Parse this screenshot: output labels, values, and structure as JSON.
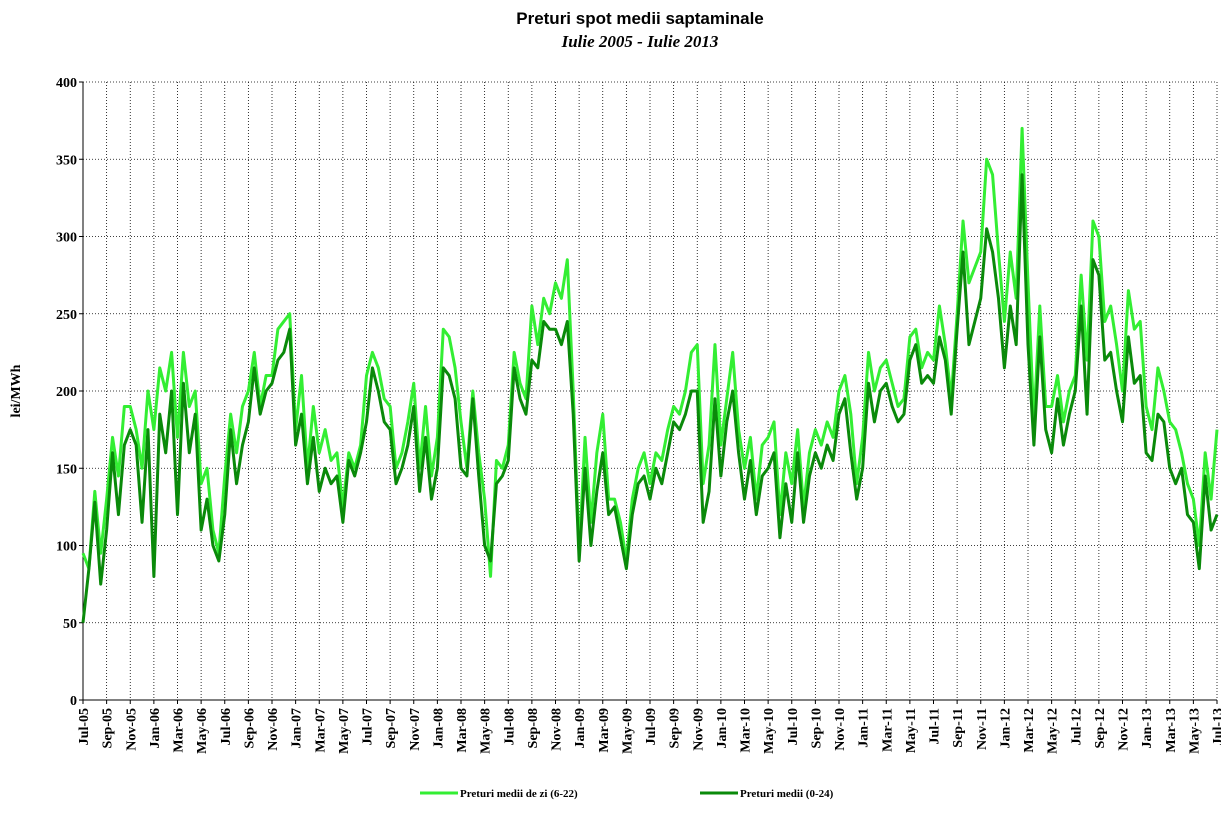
{
  "chart_data": {
    "type": "line",
    "title": "Preturi spot medii saptaminale",
    "subtitle": "Iulie 2005 - Iulie 2013",
    "y_label": "lei/MWh",
    "ylim": [
      0,
      400
    ],
    "yticks": [
      0,
      50,
      100,
      150,
      200,
      250,
      300,
      350,
      400
    ],
    "grid": true,
    "categories": [
      "Jul-05",
      null,
      null,
      null,
      "Sep-05",
      null,
      null,
      null,
      "Nov-05",
      null,
      null,
      null,
      "Jan-06",
      null,
      null,
      null,
      "Mar-06",
      null,
      null,
      null,
      "May-06",
      null,
      null,
      null,
      "Jul-06",
      null,
      null,
      null,
      "Sep-06",
      null,
      null,
      null,
      "Nov-06",
      null,
      null,
      null,
      "Jan-07",
      null,
      null,
      null,
      "Mar-07",
      null,
      null,
      null,
      "May-07",
      null,
      null,
      null,
      "Jul-07",
      null,
      null,
      null,
      "Sep-07",
      null,
      null,
      null,
      "Nov-07",
      null,
      null,
      null,
      "Jan-08",
      null,
      null,
      null,
      "Mar-08",
      null,
      null,
      null,
      "May-08",
      null,
      null,
      null,
      "Jul-08",
      null,
      null,
      null,
      "Sep-08",
      null,
      null,
      null,
      "Nov-08",
      null,
      null,
      null,
      "Jan-09",
      null,
      null,
      null,
      "Mar-09",
      null,
      null,
      null,
      "May-09",
      null,
      null,
      null,
      "Jul-09",
      null,
      null,
      null,
      "Sep-09",
      null,
      null,
      null,
      "Nov-09",
      null,
      null,
      null,
      "Jan-10",
      null,
      null,
      null,
      "Mar-10",
      null,
      null,
      null,
      "May-10",
      null,
      null,
      null,
      "Jul-10",
      null,
      null,
      null,
      "Sep-10",
      null,
      null,
      null,
      "Nov-10",
      null,
      null,
      null,
      "Jan-11",
      null,
      null,
      null,
      "Mar-11",
      null,
      null,
      null,
      "May-11",
      null,
      null,
      null,
      "Jul-11",
      null,
      null,
      null,
      "Sep-11",
      null,
      null,
      null,
      "Nov-11",
      null,
      null,
      null,
      "Jan-12",
      null,
      null,
      null,
      "Mar-12",
      null,
      null,
      null,
      "May-12",
      null,
      null,
      null,
      "Jul-12",
      null,
      null,
      null,
      "Sep-12",
      null,
      null,
      null,
      "Nov-12",
      null,
      null,
      null,
      "Jan-13",
      null,
      null,
      null,
      "Mar-13",
      null,
      null,
      null,
      "May-13",
      null,
      null,
      null,
      "Jul-13"
    ],
    "series": [
      {
        "name": "Preturi medii de zi (6-22)",
        "color": "#33ee33",
        "values": [
          95,
          85,
          135,
          95,
          130,
          170,
          145,
          190,
          190,
          175,
          150,
          200,
          175,
          215,
          200,
          225,
          170,
          225,
          190,
          200,
          140,
          150,
          110,
          95,
          145,
          185,
          160,
          190,
          200,
          225,
          190,
          210,
          210,
          240,
          245,
          250,
          175,
          210,
          150,
          190,
          160,
          175,
          155,
          160,
          125,
          160,
          150,
          165,
          210,
          225,
          215,
          195,
          190,
          150,
          160,
          180,
          205,
          150,
          190,
          145,
          170,
          240,
          235,
          215,
          180,
          150,
          200,
          160,
          130,
          80,
          155,
          150,
          165,
          225,
          205,
          195,
          255,
          230,
          260,
          250,
          270,
          260,
          285,
          200,
          95,
          170,
          115,
          160,
          185,
          130,
          130,
          115,
          90,
          130,
          150,
          160,
          140,
          160,
          155,
          175,
          190,
          185,
          200,
          225,
          230,
          140,
          165,
          230,
          165,
          195,
          225,
          175,
          150,
          170,
          130,
          165,
          170,
          180,
          120,
          160,
          140,
          175,
          125,
          160,
          175,
          165,
          180,
          170,
          200,
          210,
          185,
          140,
          170,
          225,
          200,
          215,
          220,
          205,
          190,
          195,
          235,
          240,
          215,
          225,
          220,
          255,
          230,
          195,
          250,
          310,
          270,
          280,
          290,
          350,
          340,
          290,
          245,
          290,
          260,
          370,
          270,
          180,
          255,
          190,
          190,
          210,
          180,
          200,
          210,
          275,
          220,
          310,
          300,
          245,
          255,
          230,
          200,
          265,
          240,
          245,
          190,
          175,
          215,
          200,
          180,
          175,
          160,
          140,
          130,
          100,
          160,
          130,
          175
        ]
      },
      {
        "name": "Preturi medii (0-24)",
        "color": "#0a8a0a",
        "values": [
          50,
          85,
          128,
          75,
          110,
          160,
          120,
          165,
          175,
          165,
          115,
          175,
          80,
          185,
          160,
          200,
          120,
          205,
          160,
          185,
          110,
          130,
          100,
          90,
          120,
          175,
          140,
          165,
          180,
          215,
          185,
          200,
          205,
          220,
          225,
          240,
          165,
          185,
          140,
          170,
          135,
          150,
          140,
          145,
          115,
          155,
          145,
          160,
          180,
          215,
          200,
          180,
          175,
          140,
          150,
          165,
          190,
          135,
          170,
          130,
          150,
          215,
          210,
          195,
          150,
          145,
          195,
          145,
          100,
          90,
          140,
          145,
          155,
          215,
          195,
          185,
          220,
          215,
          245,
          240,
          240,
          230,
          245,
          185,
          90,
          150,
          100,
          135,
          160,
          120,
          125,
          105,
          85,
          120,
          140,
          145,
          130,
          150,
          140,
          160,
          180,
          175,
          185,
          200,
          200,
          115,
          135,
          195,
          145,
          180,
          200,
          160,
          130,
          155,
          120,
          145,
          150,
          160,
          105,
          140,
          115,
          160,
          115,
          145,
          160,
          150,
          165,
          155,
          185,
          195,
          160,
          130,
          150,
          205,
          180,
          200,
          205,
          190,
          180,
          185,
          220,
          230,
          205,
          210,
          205,
          235,
          220,
          185,
          240,
          290,
          230,
          245,
          260,
          305,
          290,
          260,
          215,
          255,
          230,
          340,
          230,
          165,
          235,
          175,
          160,
          195,
          165,
          185,
          200,
          255,
          185,
          285,
          275,
          220,
          225,
          200,
          180,
          235,
          205,
          210,
          160,
          155,
          185,
          180,
          150,
          140,
          150,
          120,
          115,
          85,
          145,
          110,
          120
        ]
      }
    ]
  }
}
